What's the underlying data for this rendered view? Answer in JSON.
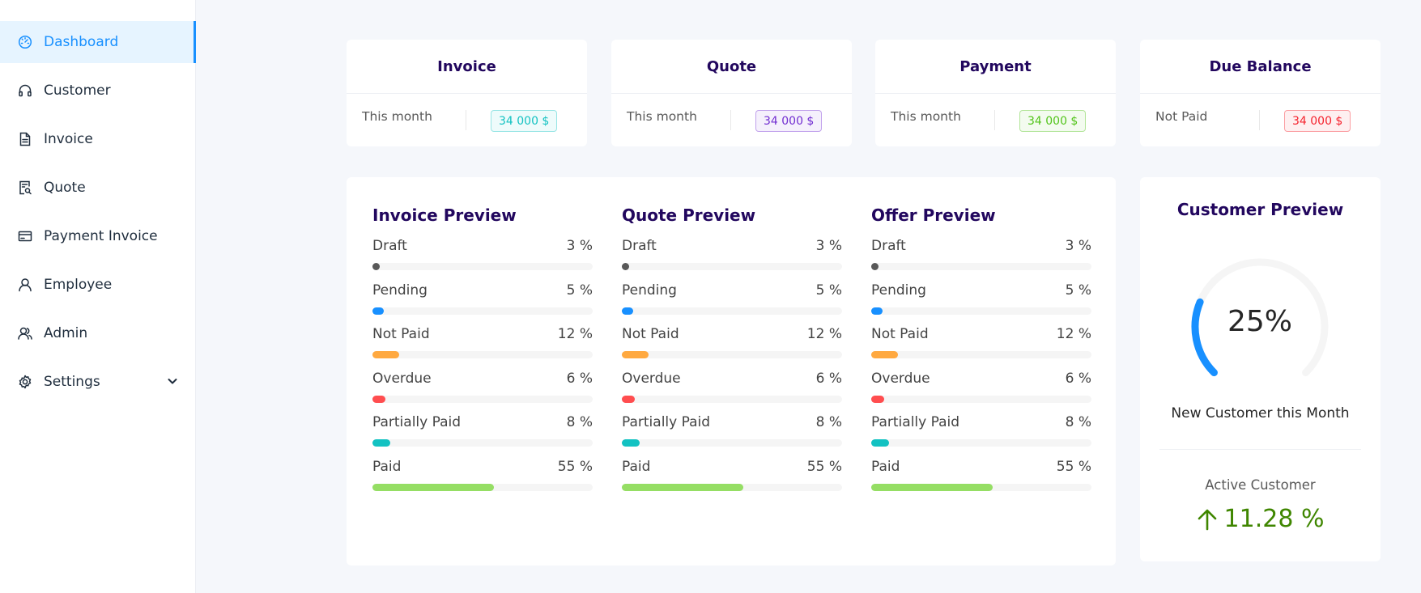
{
  "sidebar": {
    "items": [
      {
        "label": "Dashboard",
        "icon": "dashboard-icon",
        "active": true
      },
      {
        "label": "Customer",
        "icon": "headphones-icon"
      },
      {
        "label": "Invoice",
        "icon": "file-text-icon"
      },
      {
        "label": "Quote",
        "icon": "file-search-icon"
      },
      {
        "label": "Payment Invoice",
        "icon": "credit-card-icon"
      },
      {
        "label": "Employee",
        "icon": "user-icon"
      },
      {
        "label": "Admin",
        "icon": "team-icon"
      },
      {
        "label": "Settings",
        "icon": "gear-icon"
      }
    ]
  },
  "summary": [
    {
      "title": "Invoice",
      "label": "This month",
      "value": "34 000 $",
      "color": "#13c2c2"
    },
    {
      "title": "Quote",
      "label": "This month",
      "value": "34 000 $",
      "color": "#722ed1"
    },
    {
      "title": "Payment",
      "label": "This month",
      "value": "34 000 $",
      "color": "#52c41a"
    },
    {
      "title": "Due Balance",
      "label": "Not Paid",
      "value": "34 000 $",
      "color": "#f5222d"
    }
  ],
  "previews": [
    {
      "title": "Invoice Preview"
    },
    {
      "title": "Quote Preview"
    },
    {
      "title": "Offer Preview"
    }
  ],
  "statuses": [
    {
      "label": "Draft",
      "value": "3 %",
      "percent": 3,
      "color": "#595959"
    },
    {
      "label": "Pending",
      "value": "5 %",
      "percent": 5,
      "color": "#1890ff"
    },
    {
      "label": "Not Paid",
      "value": "12 %",
      "percent": 12,
      "color": "#ffa940"
    },
    {
      "label": "Overdue",
      "value": "6 %",
      "percent": 6,
      "color": "#ff4d4f"
    },
    {
      "label": "Partially Paid",
      "value": "8 %",
      "percent": 8,
      "color": "#13c2c2"
    },
    {
      "label": "Paid",
      "value": "55 %",
      "percent": 55,
      "color": "#95de64"
    }
  ],
  "customer": {
    "title": "Customer Preview",
    "percent_value": 25,
    "percent_text": "25%",
    "subtitle": "New Customer this Month",
    "active_label": "Active Customer",
    "active_value": "11.28 %",
    "gauge_color": "#1890ff",
    "active_color": "#3f8600"
  }
}
